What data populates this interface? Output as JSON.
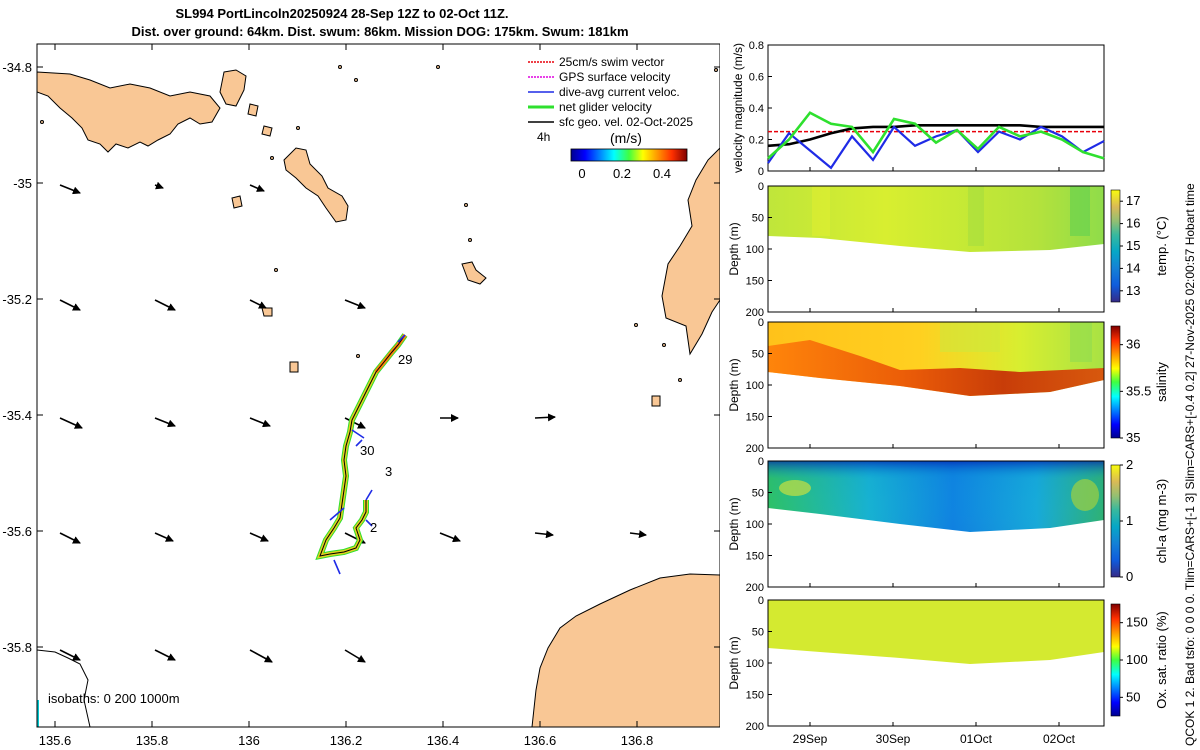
{
  "header": {
    "title_line1": "SL994 PortLincoln20250924 28-Sep 12Z to 02-Oct 11Z.",
    "title_line2": "Dist. over ground: 64km. Dist. swum: 86km. Mission DOG: 175km. Swum: 181km",
    "side_note": "QCOK 1  2. Bad tsfo: 0  0  0  0. Tlim=CARS+[-1 3] Slim=CARS+[-0.4 0.2] 27-Nov-2025 02:00:57 Hobart time"
  },
  "colors": {
    "land": "#F9C795",
    "ocean": "#FFFFFF",
    "swim_vector": "#E8000B",
    "gps_velocity": "#E000E0",
    "dive_current": "#1F2BE6",
    "net_velocity": "#2EE02E",
    "geo_velocity": "#000000"
  },
  "map": {
    "legend": [
      {
        "label": "25cm/s swim vector",
        "color_key": "swim_vector"
      },
      {
        "label": "GPS surface velocity",
        "color_key": "gps_velocity"
      },
      {
        "label": "dive-avg current veloc.",
        "color_key": "dive_current"
      },
      {
        "label": "net glider velocity",
        "color_key": "net_velocity"
      },
      {
        "label": "sfc geo. vel. 02-Oct-2025",
        "color_key": "geo_velocity"
      }
    ],
    "interval_label": "4h",
    "colorbar": {
      "title": "(m/s)",
      "ticks": [
        "0",
        "0.2",
        "0.4"
      ]
    },
    "isobaths_label": "isobaths: 0   200  1000m",
    "day_labels": [
      "29",
      "30",
      "3",
      "2"
    ],
    "lat_ticks": [
      "-34.8",
      "-35",
      "-35.2",
      "-35.4",
      "-35.6",
      "-35.8"
    ],
    "lon_ticks": [
      "135.6",
      "135.8",
      "136",
      "136.2",
      "136.4",
      "136.6",
      "136.8"
    ]
  },
  "chart_data": [
    {
      "type": "line",
      "title": "",
      "ylabel": "velocity magnitude (m/s)",
      "ylim": [
        0,
        0.8
      ],
      "yticks": [
        "0",
        "0.2",
        "0.4",
        "0.6",
        "0.8"
      ],
      "x": [
        0,
        0.25,
        0.5,
        0.75,
        1,
        1.25,
        1.5,
        1.75,
        2,
        2.25,
        2.5,
        2.75,
        3,
        3.25,
        3.5,
        3.75,
        4
      ],
      "series": [
        {
          "name": "swim vector",
          "color_key": "swim_vector",
          "values": [
            0.25,
            0.25,
            0.25,
            0.25,
            0.25,
            0.25,
            0.25,
            0.25,
            0.25,
            0.25,
            0.25,
            0.25,
            0.25,
            0.25,
            0.25,
            0.25,
            0.25
          ]
        },
        {
          "name": "sfc geo. vel.",
          "color_key": "geo_velocity",
          "values": [
            0.16,
            0.17,
            0.2,
            0.24,
            0.27,
            0.28,
            0.28,
            0.29,
            0.29,
            0.29,
            0.29,
            0.29,
            0.29,
            0.28,
            0.28,
            0.28,
            0.28
          ]
        },
        {
          "name": "dive-avg current",
          "color_key": "dive_current",
          "values": [
            0.05,
            0.24,
            0.13,
            0.02,
            0.22,
            0.07,
            0.28,
            0.16,
            0.22,
            0.26,
            0.12,
            0.25,
            0.2,
            0.28,
            0.22,
            0.12,
            0.19
          ]
        },
        {
          "name": "net glider velocity",
          "color_key": "net_velocity",
          "values": [
            0.08,
            0.2,
            0.37,
            0.3,
            0.28,
            0.12,
            0.33,
            0.3,
            0.18,
            0.26,
            0.14,
            0.28,
            0.22,
            0.25,
            0.2,
            0.12,
            0.08
          ]
        }
      ]
    },
    {
      "type": "heatmap",
      "ylabel": "Depth (m)",
      "colorbar_label": "temp. (°C)",
      "clim": [
        12.5,
        17.5
      ],
      "cticks": [
        "13",
        "14",
        "15",
        "16",
        "17"
      ],
      "ylim": [
        0,
        200
      ],
      "yticks": [
        "0",
        "50",
        "100",
        "150",
        "200"
      ]
    },
    {
      "type": "heatmap",
      "ylabel": "Depth (m)",
      "colorbar_label": "salinity",
      "clim": [
        35,
        36.2
      ],
      "cticks": [
        "35",
        "35.5",
        "36"
      ],
      "ylim": [
        0,
        200
      ],
      "yticks": [
        "0",
        "50",
        "100",
        "150",
        "200"
      ]
    },
    {
      "type": "heatmap",
      "ylabel": "Depth (m)",
      "colorbar_label": "chl-a (mg m-3)",
      "clim": [
        0,
        2
      ],
      "cticks": [
        "0",
        "1",
        "2"
      ],
      "ylim": [
        0,
        200
      ],
      "yticks": [
        "0",
        "50",
        "100",
        "150",
        "200"
      ]
    },
    {
      "type": "heatmap",
      "ylabel": "Depth (m)",
      "colorbar_label": "Ox. sat. ratio (%)",
      "clim": [
        25,
        175
      ],
      "cticks": [
        "50",
        "100",
        "150"
      ],
      "ylim": [
        0,
        200
      ],
      "yticks": [
        "0",
        "50",
        "100",
        "150",
        "200"
      ]
    }
  ],
  "time_axis": {
    "ticks": [
      "29Sep",
      "30Sep",
      "01Oct",
      "02Oct"
    ]
  }
}
